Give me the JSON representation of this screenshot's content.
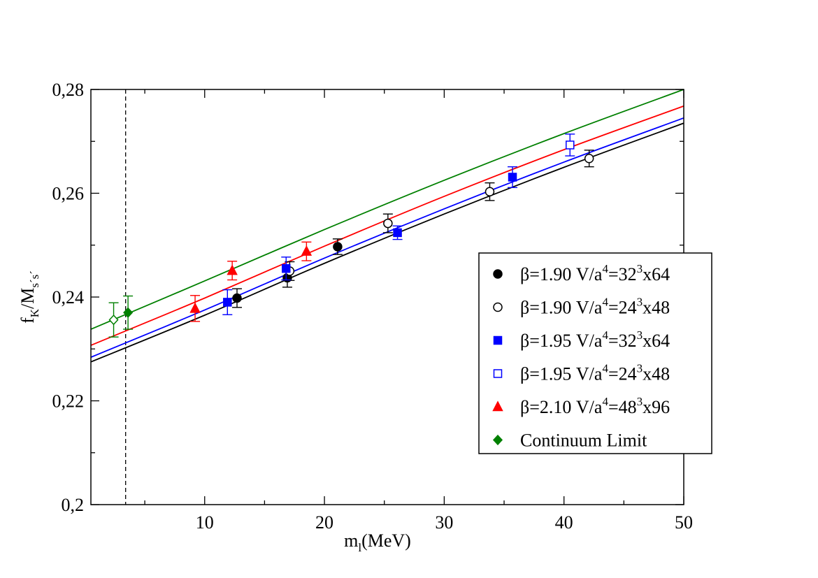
{
  "chart_data": {
    "type": "scatter",
    "xlabel": "m_l(MeV)",
    "ylabel": "f_K/M_s's'",
    "xlim": [
      0.5,
      50
    ],
    "ylim": [
      0.2,
      0.28
    ],
    "x_ticks": [
      10,
      20,
      30,
      40,
      50
    ],
    "y_ticks": [
      0.2,
      0.22,
      0.24,
      0.26,
      0.28
    ],
    "x_tick_labels": [
      "10",
      "20",
      "30",
      "40",
      "50"
    ],
    "y_tick_labels": [
      "0,2",
      "0,22",
      "0,24",
      "0,26",
      "0,28"
    ],
    "grid": false,
    "legend_position": "right",
    "vertical_reference_x": 3.4,
    "series": [
      {
        "name": "β=1.90 V/a⁴=32³x64",
        "legend": {
          "prefix": "β=1.90 V/a",
          "exp1": "4",
          "mid": "=32",
          "exp2": "3",
          "suffix": "x64"
        },
        "color": "#000000",
        "marker": "circle",
        "filled": true,
        "points": [
          {
            "x": 12.7,
            "y": 0.2398,
            "err": 0.0018
          },
          {
            "x": 16.9,
            "y": 0.2437,
            "err": 0.0018
          },
          {
            "x": 21.1,
            "y": 0.2497,
            "err": 0.0015
          }
        ]
      },
      {
        "name": "β=1.90 V/a⁴=24³x48",
        "legend": {
          "prefix": "β=1.90 V/a",
          "exp1": "4",
          "mid": "=24",
          "exp2": "3",
          "suffix": "x48"
        },
        "color": "#000000",
        "marker": "circle",
        "filled": false,
        "points": [
          {
            "x": 17.1,
            "y": 0.245,
            "err": 0.0018
          },
          {
            "x": 25.3,
            "y": 0.2542,
            "err": 0.0018
          },
          {
            "x": 33.8,
            "y": 0.2603,
            "err": 0.0017
          },
          {
            "x": 42.1,
            "y": 0.2667,
            "err": 0.0016
          }
        ]
      },
      {
        "name": "β=1.95 V/a⁴=32³x64",
        "legend": {
          "prefix": "β=1.95 V/a",
          "exp1": "4",
          "mid": "=32",
          "exp2": "3",
          "suffix": "x64"
        },
        "color": "#0000ff",
        "marker": "square",
        "filled": true,
        "points": [
          {
            "x": 11.9,
            "y": 0.239,
            "err": 0.0024
          },
          {
            "x": 16.8,
            "y": 0.2455,
            "err": 0.0022
          },
          {
            "x": 26.1,
            "y": 0.2524,
            "err": 0.0013
          },
          {
            "x": 35.7,
            "y": 0.2631,
            "err": 0.002
          }
        ]
      },
      {
        "name": "β=1.95 V/a⁴=24³x48",
        "legend": {
          "prefix": "β=1.95 V/a",
          "exp1": "4",
          "mid": "=24",
          "exp2": "3",
          "suffix": "x48"
        },
        "color": "#0000ff",
        "marker": "square",
        "filled": false,
        "points": [
          {
            "x": 40.5,
            "y": 0.2693,
            "err": 0.0021
          }
        ]
      },
      {
        "name": "β=2.10 V/a⁴=48³x96",
        "legend": {
          "prefix": "β=2.10 V/a",
          "exp1": "4",
          "mid": "=48",
          "exp2": "3",
          "suffix": "x96"
        },
        "color": "#ff0000",
        "marker": "triangle",
        "filled": true,
        "points": [
          {
            "x": 9.2,
            "y": 0.2378,
            "err": 0.0025
          },
          {
            "x": 12.3,
            "y": 0.2451,
            "err": 0.0018
          },
          {
            "x": 18.5,
            "y": 0.2488,
            "err": 0.0018
          }
        ]
      },
      {
        "name": "Continuum Limit",
        "legend": {
          "prefix": "Continuum Limit",
          "exp1": "",
          "mid": "",
          "exp2": "",
          "suffix": ""
        },
        "color": "#008000",
        "marker": "diamond",
        "filled": true,
        "points": [
          {
            "x": 2.4,
            "y": 0.2356,
            "err": 0.0033,
            "filled": false
          },
          {
            "x": 3.6,
            "y": 0.237,
            "err": 0.0032,
            "filled": true
          }
        ]
      }
    ],
    "fit_curves": [
      {
        "color": "#000000",
        "x": [
          0.5,
          10,
          20,
          30,
          40,
          50
        ],
        "y": [
          0.2275,
          0.2365,
          0.2465,
          0.256,
          0.265,
          0.2735
        ]
      },
      {
        "color": "#0000ff",
        "x": [
          0.5,
          10,
          20,
          30,
          40,
          50
        ],
        "y": [
          0.2284,
          0.2375,
          0.2475,
          0.257,
          0.266,
          0.2745
        ]
      },
      {
        "color": "#ff0000",
        "x": [
          0.5,
          10,
          20,
          30,
          40,
          50
        ],
        "y": [
          0.2307,
          0.2398,
          0.2498,
          0.2594,
          0.2684,
          0.2768
        ]
      },
      {
        "color": "#008000",
        "x": [
          0.5,
          10,
          20,
          30,
          40,
          50
        ],
        "y": [
          0.2338,
          0.2431,
          0.253,
          0.2625,
          0.2715,
          0.28
        ]
      }
    ]
  }
}
